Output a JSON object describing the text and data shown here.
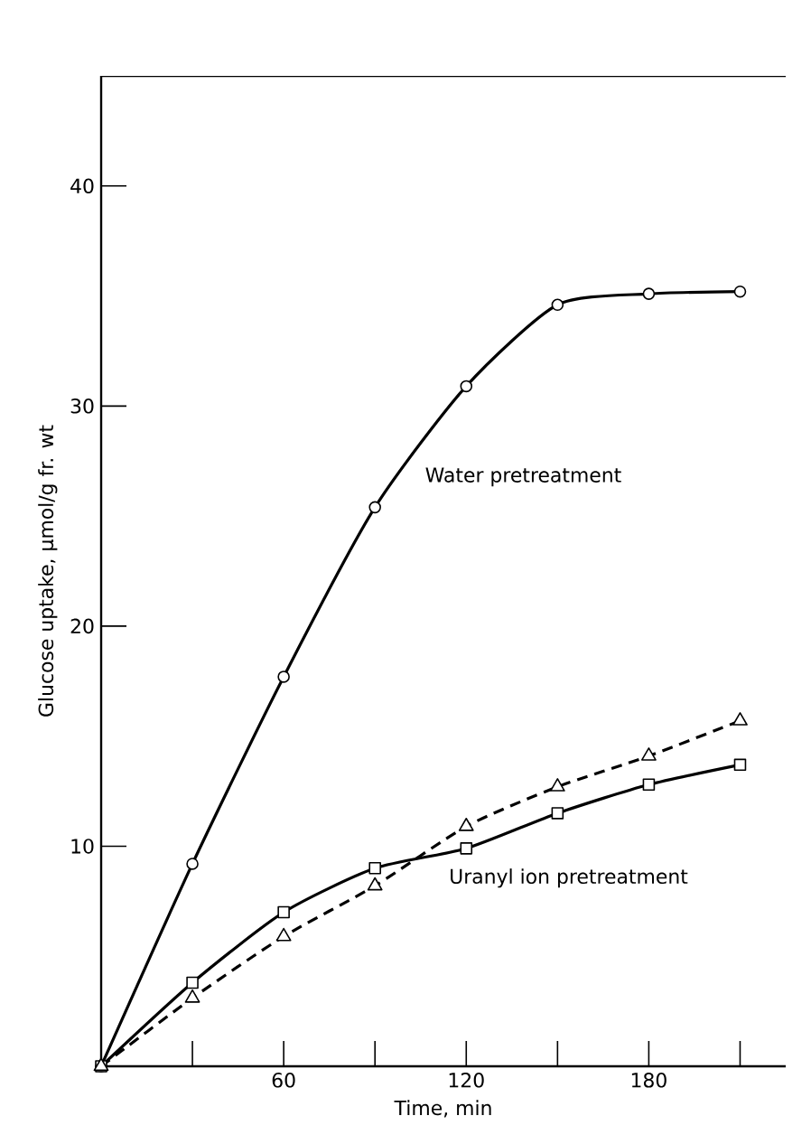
{
  "chart_data": {
    "type": "line",
    "xlabel": "Time,   min",
    "ylabel": "Glucose uptake,   μmol/g fr. wt",
    "x": [
      0,
      30,
      60,
      90,
      120,
      150,
      180,
      210
    ],
    "series": [
      {
        "color": "#000000",
        "marker": "circle",
        "line_style": "solid",
        "values": [
          0,
          9.2,
          17.7,
          25.4,
          30.9,
          34.6,
          35.1,
          35.2
        ]
      },
      {
        "color": "#000000",
        "marker": "square",
        "line_style": "solid",
        "values": [
          0,
          3.8,
          7.0,
          9.0,
          9.9,
          11.5,
          12.8,
          13.7
        ]
      },
      {
        "color": "#000000",
        "marker": "triangle",
        "line_style": "dashed",
        "values": [
          0,
          3.1,
          5.9,
          8.2,
          10.9,
          12.7,
          14.1,
          15.7
        ]
      }
    ],
    "xlim": [
      0,
      225
    ],
    "ylim": [
      0,
      45
    ],
    "xticks": [
      {
        "value": 30,
        "label": null
      },
      60,
      {
        "value": 90,
        "label": null
      },
      120,
      {
        "value": 150,
        "label": null
      },
      180,
      {
        "value": 210,
        "label": null
      }
    ],
    "yticks": [
      10,
      20,
      30,
      40
    ],
    "grid": false,
    "annotations": [
      "Water pretreatment",
      "Uranyl ion pretreatment"
    ]
  }
}
